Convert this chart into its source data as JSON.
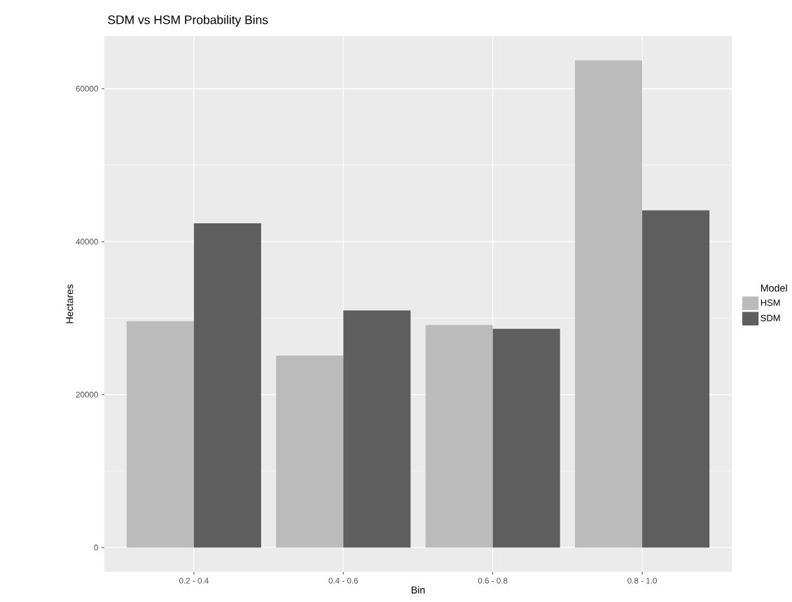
{
  "chart_data": {
    "type": "bar",
    "title": "SDM vs HSM Probability Bins",
    "xlabel": "Bin",
    "ylabel": "Hectares",
    "legend_title": "Model",
    "categories": [
      "0.2 - 0.4",
      "0.4 - 0.6",
      "0.6 - 0.8",
      "0.8 - 1.0"
    ],
    "series": [
      {
        "name": "HSM",
        "color": "#bbbbbb",
        "values": [
          29600,
          25100,
          29100,
          63700
        ]
      },
      {
        "name": "SDM",
        "color": "#5e5e5e",
        "values": [
          42400,
          31000,
          28600,
          44100
        ]
      }
    ],
    "ylim": [
      -3185,
      66885
    ],
    "yticks": [
      0,
      20000,
      40000,
      60000
    ],
    "grid": true,
    "legend": "right"
  }
}
